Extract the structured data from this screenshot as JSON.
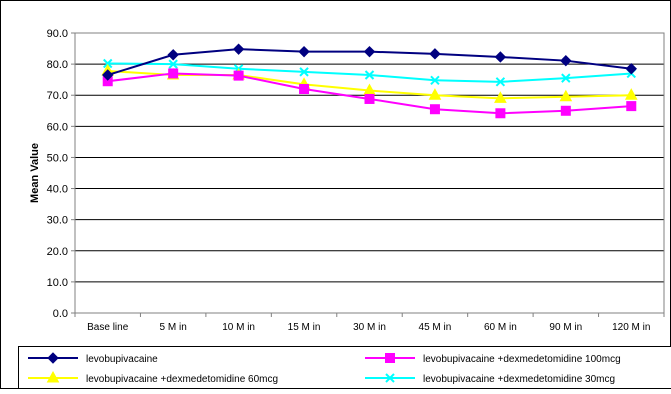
{
  "chart_data": {
    "type": "line",
    "title": "",
    "ylabel": "Mean Value",
    "xlabel": "",
    "categories": [
      "Base line",
      "5 M in",
      "10 M in",
      "15 M in",
      "30 M in",
      "45 M in",
      "60 M in",
      "90 M in",
      "120 M in"
    ],
    "ylim": [
      0,
      90
    ],
    "yticks": [
      "0.0",
      "10.0",
      "20.0",
      "30.0",
      "40.0",
      "50.0",
      "60.0",
      "70.0",
      "80.0",
      "90.0"
    ],
    "grid": true,
    "legend_position": "bottom",
    "series": [
      {
        "name": "levobupivacaine",
        "color": "#000080",
        "marker": "diamond",
        "values": [
          76.5,
          83.0,
          84.8,
          84.0,
          84.0,
          83.3,
          82.3,
          81.1,
          78.5
        ]
      },
      {
        "name": "levobupivacaine +dexmedetomidine 100mcg",
        "color": "#ff00ff",
        "marker": "square",
        "values": [
          74.5,
          77.0,
          76.3,
          72.0,
          68.8,
          65.5,
          64.2,
          65.0,
          66.5
        ]
      },
      {
        "name": "levobupivacaine +dexmedetomidine 60mcg",
        "color": "#ffff00",
        "marker": "triangle",
        "values": [
          77.8,
          76.5,
          76.5,
          73.5,
          71.5,
          70.0,
          69.0,
          69.5,
          70.0
        ]
      },
      {
        "name": "levobupivacaine +dexmedetomidine 30mcg",
        "color": "#00ffff",
        "marker": "x",
        "values": [
          80.2,
          80.0,
          78.5,
          77.5,
          76.5,
          74.8,
          74.3,
          75.5,
          77.0
        ]
      }
    ]
  }
}
